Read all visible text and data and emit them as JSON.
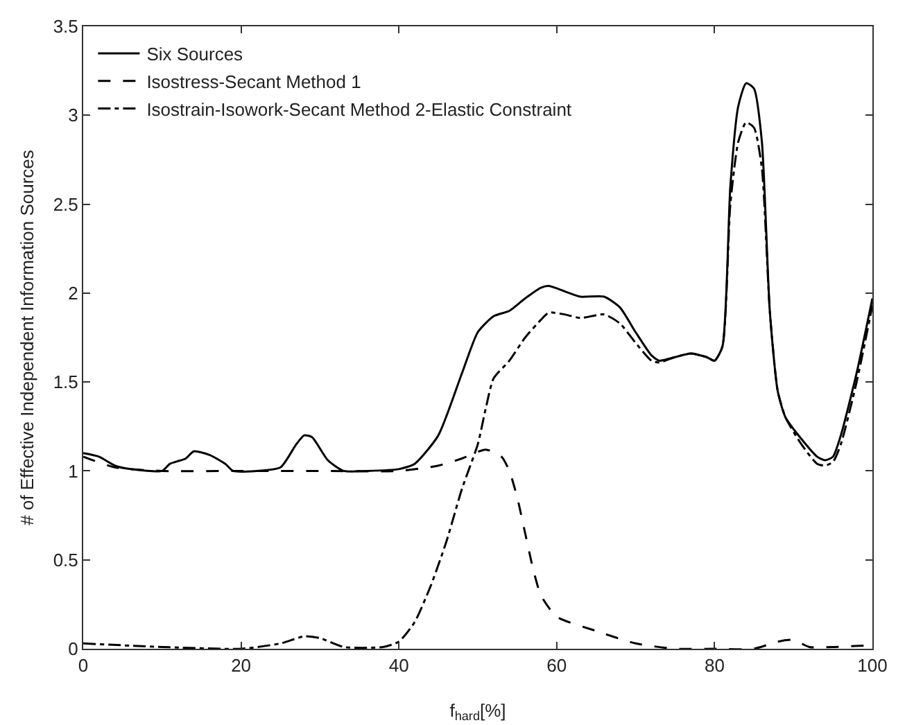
{
  "chart_data": {
    "type": "line",
    "xlabel": "f$_{hard}$[%]",
    "ylabel": "# of Effective Independent Information Sources",
    "xlim": [
      0,
      100
    ],
    "xticks": [
      0,
      20,
      40,
      60,
      80,
      100
    ],
    "ylim": [
      0,
      3.5
    ],
    "yticks": [
      0,
      0.5,
      1,
      1.5,
      2,
      2.5,
      3,
      3.5
    ],
    "grid": false,
    "legend": "top left",
    "marker": "none",
    "series": [
      {
        "name": "Six Sources",
        "color": "#000000",
        "line_style": "solid",
        "x": [
          0,
          2,
          4,
          6,
          10,
          11,
          13,
          14,
          16,
          18,
          19,
          22,
          25,
          27,
          28,
          29,
          31,
          33,
          36,
          40,
          42,
          45,
          48,
          50,
          52,
          54,
          56,
          58,
          59,
          61,
          63,
          66,
          68,
          70,
          72,
          73,
          75,
          77,
          79,
          80,
          81,
          82,
          83,
          84,
          85,
          86,
          87,
          88,
          89,
          91,
          93,
          94,
          95,
          96,
          98,
          100
        ],
        "values": [
          1.1,
          1.08,
          1.03,
          1.01,
          1.0,
          1.04,
          1.07,
          1.11,
          1.09,
          1.04,
          1.0,
          1.0,
          1.02,
          1.15,
          1.2,
          1.19,
          1.06,
          1.0,
          1.0,
          1.01,
          1.04,
          1.2,
          1.55,
          1.78,
          1.87,
          1.9,
          1.97,
          2.03,
          2.04,
          2.01,
          1.98,
          1.98,
          1.92,
          1.78,
          1.65,
          1.62,
          1.64,
          1.66,
          1.64,
          1.62,
          1.7,
          2.6,
          3.05,
          3.18,
          3.15,
          2.85,
          1.9,
          1.45,
          1.3,
          1.18,
          1.08,
          1.06,
          1.08,
          1.2,
          1.55,
          1.97
        ]
      },
      {
        "name": "Isostress-Secant Method 1",
        "color": "#000000",
        "line_style": "dashed",
        "x": [
          0,
          4,
          10,
          20,
          30,
          40,
          45,
          48,
          51,
          53,
          54,
          55,
          56,
          57,
          58,
          60,
          65,
          70,
          75,
          80,
          85,
          88,
          90,
          92,
          95,
          100
        ],
        "values": [
          1.08,
          1.02,
          1.0,
          1.0,
          1.0,
          1.0,
          1.03,
          1.07,
          1.12,
          1.08,
          1.0,
          0.85,
          0.65,
          0.45,
          0.3,
          0.18,
          0.1,
          0.03,
          0.0,
          0.0,
          0.0,
          0.04,
          0.05,
          0.01,
          0.01,
          0.02
        ]
      },
      {
        "name": "Isostrain-Isowork-Secant Method 2-Elastic Constraint",
        "color": "#000000",
        "line_style": "dashdot",
        "x": [
          0,
          10,
          20,
          25,
          28,
          30,
          33,
          38,
          40,
          42,
          44,
          46,
          48,
          50,
          51,
          52,
          54,
          56,
          58,
          59,
          61,
          63,
          66,
          68,
          70,
          72,
          73,
          75,
          77,
          79,
          80,
          81,
          82,
          83,
          84,
          85,
          86,
          87,
          88,
          89,
          91,
          93,
          94,
          95,
          96,
          98,
          100
        ],
        "values": [
          0.03,
          0.01,
          0.0,
          0.03,
          0.07,
          0.06,
          0.01,
          0.01,
          0.04,
          0.15,
          0.35,
          0.6,
          0.9,
          1.15,
          1.35,
          1.52,
          1.62,
          1.75,
          1.85,
          1.89,
          1.88,
          1.86,
          1.88,
          1.83,
          1.72,
          1.62,
          1.61,
          1.64,
          1.66,
          1.64,
          1.62,
          1.7,
          2.5,
          2.85,
          2.96,
          2.93,
          2.7,
          1.9,
          1.45,
          1.3,
          1.15,
          1.04,
          1.03,
          1.05,
          1.15,
          1.5,
          1.93
        ]
      }
    ]
  }
}
